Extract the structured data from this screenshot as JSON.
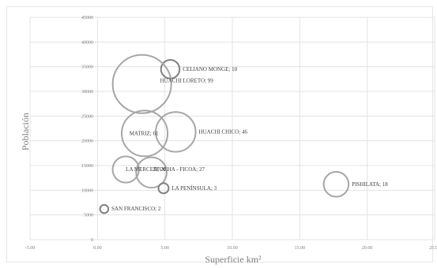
{
  "chart_data": {
    "type": "bubble",
    "xlabel": "Superficie km²",
    "ylabel": "Población",
    "xlim": [
      -5,
      25
    ],
    "ylim": [
      0,
      45000
    ],
    "x_ticks": [
      "-5.00",
      "0.00",
      "5.00",
      "10.00",
      "15.00",
      "20.00",
      "25.00"
    ],
    "y_ticks": [
      "0",
      "5000",
      "10000",
      "15000",
      "20000",
      "25000",
      "30000",
      "35000",
      "40000",
      "45000"
    ],
    "grid": true,
    "points": [
      {
        "label": "CELIANO MONGE; 10",
        "x": 5.4,
        "y": 34500,
        "size": 10
      },
      {
        "label": "HUACHI LORETO; 99",
        "x": 3.3,
        "y": 31500,
        "size": 99
      },
      {
        "label": "MATRIZ; 61",
        "x": 3.5,
        "y": 21500,
        "size": 61
      },
      {
        "label": "HUACHI CHICO; 46",
        "x": 5.8,
        "y": 21800,
        "size": 46
      },
      {
        "label": "LA MERCED; 20",
        "x": 2.1,
        "y": 14200,
        "size": 20
      },
      {
        "label": "ATOCHA - FICOA; 27",
        "x": 4.0,
        "y": 13600,
        "size": 27
      },
      {
        "label": "LA PENÍNSULA; 3",
        "x": 4.9,
        "y": 10400,
        "size": 3
      },
      {
        "label": "PISHILATA; 18",
        "x": 17.7,
        "y": 11200,
        "size": 18
      },
      {
        "label": "SAN FRANCISCO; 2",
        "x": 0.5,
        "y": 6200,
        "size": 2
      }
    ],
    "colors": {
      "bubble_stroke": "#a6a6a6",
      "small_bubble_stroke": "#808080",
      "grid": "#e3e3e3",
      "text": "#404040",
      "axis_text": "#7f7f7f"
    }
  }
}
